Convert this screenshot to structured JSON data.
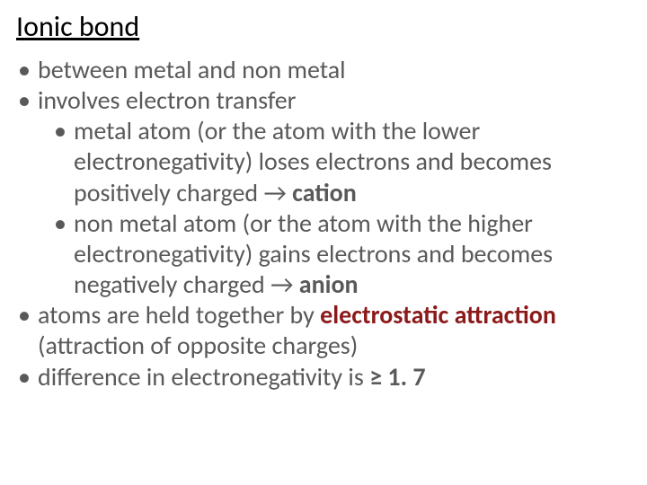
{
  "slide": {
    "title": "Ionic bond",
    "colors": {
      "title_color": "#000000",
      "body_color": "#595959",
      "emphasis_color": "#8b1a1a",
      "background": "#ffffff"
    },
    "typography": {
      "title_fontsize_pt": 24,
      "body_fontsize_pt": 21,
      "font_family": "Calibri"
    },
    "bullets": [
      {
        "text": "between metal and non metal"
      },
      {
        "text": "involves electron transfer",
        "sub": [
          {
            "pre": "metal atom (or the atom with the lower electronegativity) loses electrons and becomes positively charged ",
            "arrow": "→",
            "post": " ",
            "bold": "cation"
          },
          {
            "pre": "non metal atom (or the atom with the higher electronegativity) gains electrons and becomes negatively charged ",
            "arrow": "→",
            "post": " ",
            "bold": "anion"
          }
        ]
      },
      {
        "pre": "atoms are held together by ",
        "emph": "electrostatic attraction",
        "post": " (attraction of opposite charges)"
      },
      {
        "pre": "difference in electronegativity is ",
        "bold": "≥ 1. 7"
      }
    ]
  }
}
